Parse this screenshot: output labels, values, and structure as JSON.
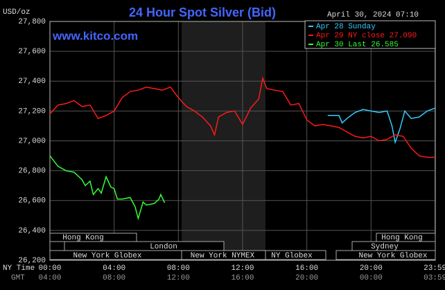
{
  "chart_data": {
    "type": "line",
    "title": "24 Hour Spot Silver (Bid)",
    "timestamp": "April 30, 2024 07:10",
    "watermark": "www.kitco.com",
    "ylabel": "USD/oz",
    "xlabel": "NY Time",
    "x2label": "GMT",
    "xlim": [
      0,
      24
    ],
    "xticks": [
      {
        "value": 0,
        "label": "00:00"
      },
      {
        "value": 4,
        "label": "04:00"
      },
      {
        "value": 8,
        "label": "08:00"
      },
      {
        "value": 12,
        "label": "12:00"
      },
      {
        "value": 16,
        "label": "16:00"
      },
      {
        "value": 20,
        "label": "20:00"
      },
      {
        "value": 23.983,
        "label": "23:59"
      }
    ],
    "x2ticks": [
      "04:00",
      "08:00",
      "12:00",
      "16:00",
      "20:00",
      "00:00",
      "03:59"
    ],
    "ylim": [
      26200,
      27800
    ],
    "yticks": [
      {
        "value": 26200,
        "label": "26,200"
      },
      {
        "value": 26400,
        "label": "26,400"
      },
      {
        "value": 26600,
        "label": "26,600"
      },
      {
        "value": 26800,
        "label": "26,800"
      },
      {
        "value": 27000,
        "label": "27,000"
      },
      {
        "value": 27200,
        "label": "27,200"
      },
      {
        "value": 27400,
        "label": "27,400"
      },
      {
        "value": 27600,
        "label": "27,600"
      },
      {
        "value": 27800,
        "label": "27,800"
      }
    ],
    "grid": true,
    "legend": "top-right",
    "sessions": [
      "Hong Kong",
      "London",
      "New York Globex",
      "New York NYMEX",
      "NY Globex",
      "Hong Kong",
      "Sydney",
      "New York Globex"
    ],
    "series": [
      {
        "name": "Apr 28 Sunday",
        "color": "#33ccff",
        "x": [
          17.3,
          18,
          18.2,
          18.5,
          19,
          19.5,
          20,
          20.5,
          21,
          21.3,
          21.5,
          21.8,
          22.1,
          22.5,
          23,
          23.5,
          24
        ],
        "values": [
          27170,
          27170,
          27120,
          27150,
          27190,
          27210,
          27200,
          27190,
          27200,
          27100,
          26990,
          27080,
          27200,
          27150,
          27160,
          27200,
          27220
        ]
      },
      {
        "name": "Apr 29 NY close 27.090",
        "color": "#ff1a1a",
        "x": [
          0,
          0.5,
          1,
          1.5,
          2,
          2.5,
          3,
          3.5,
          4,
          4.5,
          5,
          5.5,
          6,
          6.5,
          7,
          7.5,
          8,
          8.5,
          9,
          9.5,
          10,
          10.25,
          10.5,
          11,
          11.5,
          12,
          12.5,
          13,
          13.25,
          13.5,
          14,
          14.5,
          15,
          15.5,
          16,
          16.5,
          17,
          17.5,
          18,
          18.5,
          19,
          19.5,
          20,
          20.5,
          21,
          21.5,
          22,
          22.5,
          23,
          23.5,
          24
        ],
        "values": [
          27180,
          27240,
          27250,
          27270,
          27230,
          27240,
          27150,
          27170,
          27200,
          27290,
          27330,
          27340,
          27360,
          27350,
          27340,
          27360,
          27290,
          27230,
          27200,
          27160,
          27100,
          27040,
          27160,
          27190,
          27200,
          27110,
          27220,
          27280,
          27420,
          27350,
          27340,
          27330,
          27240,
          27250,
          27140,
          27100,
          27110,
          27100,
          27090,
          27060,
          27030,
          27020,
          27030,
          27000,
          27010,
          27040,
          27030,
          26950,
          26900,
          26890,
          26890
        ]
      },
      {
        "name": "Apr 30 Last 26.585",
        "color": "#33ff33",
        "x": [
          0,
          0.5,
          1,
          1.5,
          2,
          2.2,
          2.5,
          2.7,
          3,
          3.2,
          3.5,
          3.8,
          4,
          4.2,
          4.5,
          5,
          5.3,
          5.5,
          5.8,
          6,
          6.5,
          6.8,
          6.9,
          7.15
        ],
        "values": [
          26900,
          26830,
          26800,
          26790,
          26740,
          26700,
          26730,
          26640,
          26680,
          26650,
          26760,
          26690,
          26680,
          26610,
          26610,
          26620,
          26560,
          26480,
          26590,
          26570,
          26580,
          26610,
          26640,
          26585
        ]
      }
    ]
  }
}
